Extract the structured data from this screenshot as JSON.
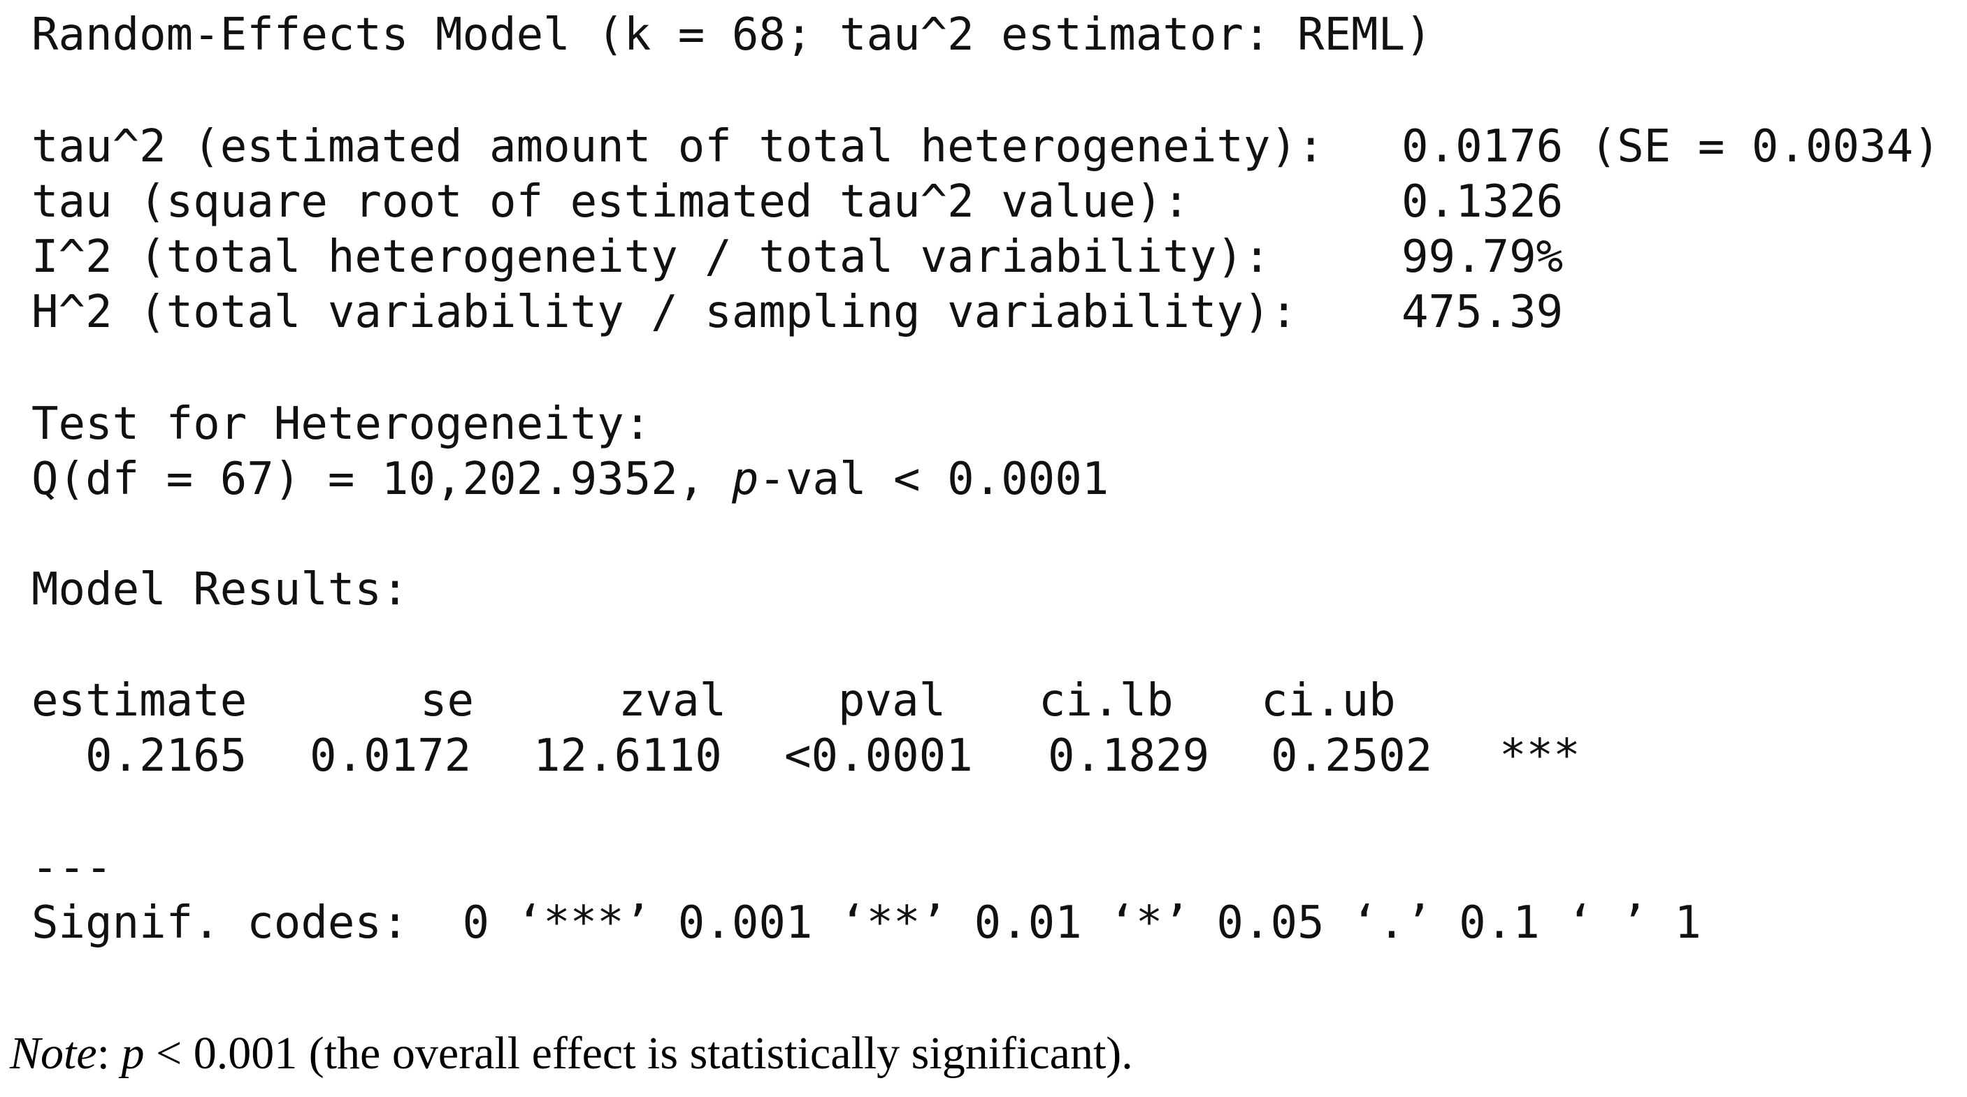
{
  "model_header": "Random-Effects Model (k = 68; tau^2 estimator: REML)",
  "heterogeneity": [
    {
      "label": "tau^2 (estimated amount of total heterogeneity):",
      "value": "0.0176 (SE = 0.0034)"
    },
    {
      "label": "tau (square root of estimated tau^2 value):",
      "value": "0.1326"
    },
    {
      "label": "I^2 (total heterogeneity / total variability):",
      "value": "99.79%"
    },
    {
      "label": "H^2 (total variability / sampling variability):",
      "value": "475.39"
    }
  ],
  "test": {
    "title": "Test for Heterogeneity:",
    "statistic": "Q(df = 67) = 10,202.9352, ",
    "p_symbol": "p",
    "p_text": "-val < 0.0001"
  },
  "model_results": {
    "title": "Model Results:",
    "columns": [
      "estimate",
      "se",
      "zval",
      "pval",
      "ci.lb",
      "ci.ub"
    ],
    "row": [
      "0.2165",
      "0.0172",
      "12.6110",
      "<0.0001",
      "0.1829",
      "0.2502",
      "***"
    ]
  },
  "separator": "---",
  "signif_codes": "Signif. codes:  0 ‘***’ 0.001 ‘**’ 0.01 ‘*’ 0.05 ‘.’ 0.1 ‘ ’ 1",
  "note": {
    "label": "Note",
    "colon": ": ",
    "p_symbol": "p",
    "text": " < 0.001 (the overall effect is statistically significant)."
  }
}
